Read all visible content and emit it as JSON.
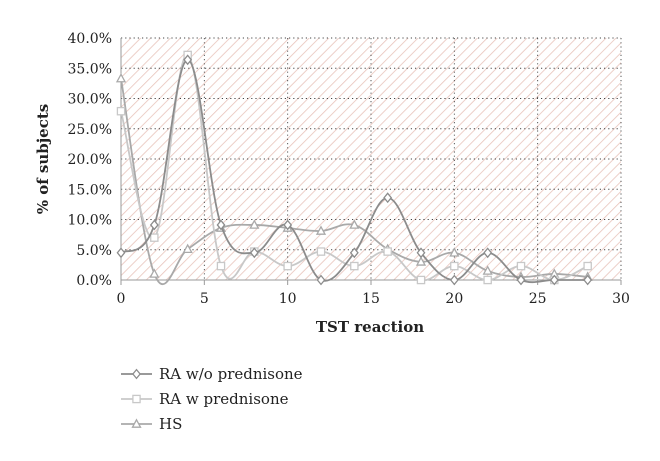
{
  "chart_data": {
    "type": "line",
    "xlabel": "TST reaction",
    "ylabel": "% of subjects",
    "xlim": [
      0,
      30
    ],
    "ylim": [
      0,
      40
    ],
    "xticks": [
      0,
      5,
      10,
      15,
      20,
      25,
      30
    ],
    "yticks": [
      0,
      5,
      10,
      15,
      20,
      25,
      30,
      35,
      40
    ],
    "xtick_labels": [
      "0",
      "5",
      "10",
      "15",
      "20",
      "25",
      "30"
    ],
    "ytick_labels": [
      "0.0%",
      "5.0%",
      "10.0%",
      "15.0%",
      "20.0%",
      "25.0%",
      "30.0%",
      "35.0%",
      "40.0%"
    ],
    "grid": true,
    "legend_position": "bottom",
    "colors": {
      "ra_wo": "#8c8c8c",
      "ra_w": "#c8c8c8",
      "hs": "#a9a9a9",
      "hatch": "#e8c4bb"
    },
    "series": [
      {
        "name": "RA w/o prednisone",
        "marker": "diamond",
        "x": [
          0,
          2,
          4,
          6,
          8,
          10,
          12,
          14,
          16,
          18,
          20,
          22,
          24,
          26,
          28
        ],
        "values": [
          4.5,
          9.1,
          36.4,
          9.1,
          4.5,
          9.1,
          0.0,
          4.5,
          13.6,
          4.5,
          0.0,
          4.5,
          0.0,
          0.0,
          0.0
        ]
      },
      {
        "name": "RA w prednisone",
        "marker": "square",
        "x": [
          0,
          2,
          4,
          6,
          8,
          10,
          12,
          14,
          16,
          18,
          20,
          22,
          24,
          26,
          28
        ],
        "values": [
          27.9,
          7.0,
          37.2,
          2.3,
          4.7,
          2.3,
          4.7,
          2.3,
          4.7,
          0.0,
          2.3,
          0.0,
          2.3,
          0.0,
          2.3
        ]
      },
      {
        "name": "HS",
        "marker": "triangle",
        "x": [
          0,
          2,
          4,
          6,
          8,
          10,
          12,
          14,
          16,
          18,
          20,
          22,
          24,
          26,
          28
        ],
        "values": [
          33.3,
          1.0,
          5.1,
          8.6,
          9.1,
          8.6,
          8.1,
          9.1,
          5.1,
          3.0,
          4.5,
          1.5,
          0.5,
          1.0,
          0.5
        ]
      }
    ]
  }
}
